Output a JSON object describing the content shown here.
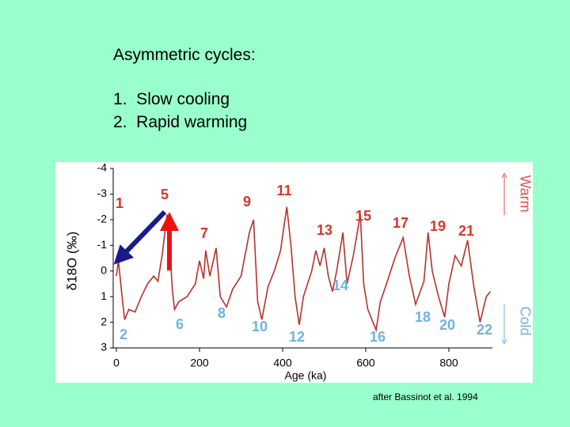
{
  "slide": {
    "heading": "Asymmetric cycles:",
    "items": [
      "1.  Slow cooling",
      "2.  Rapid warming"
    ],
    "credit": "after Bassinot et al. 1994"
  },
  "chart_data": {
    "type": "line",
    "y_label": "δ18O (‰)",
    "x_label": "Age (ka)",
    "warm_label": "Warm",
    "cold_label": "Cold",
    "xlim": [
      0,
      900
    ],
    "xticks": [
      0,
      200,
      400,
      600,
      800
    ],
    "ylim": [
      3,
      -4
    ],
    "yticks": [
      -4,
      -3,
      -2,
      -1,
      0,
      1,
      2,
      3
    ],
    "x": [
      0,
      5,
      15,
      20,
      30,
      45,
      60,
      75,
      90,
      100,
      110,
      122,
      130,
      135,
      140,
      150,
      170,
      190,
      200,
      210,
      215,
      225,
      240,
      250,
      265,
      280,
      300,
      320,
      330,
      340,
      350,
      365,
      380,
      395,
      410,
      420,
      430,
      440,
      450,
      470,
      480,
      490,
      500,
      510,
      520,
      530,
      545,
      555,
      570,
      587,
      595,
      605,
      625,
      635,
      650,
      670,
      690,
      705,
      720,
      740,
      750,
      760,
      775,
      790,
      800,
      815,
      830,
      845,
      860,
      875,
      890,
      900
    ],
    "series": [
      {
        "name": "δ18O",
        "color": "#b5332a",
        "values": [
          0.2,
          -0.4,
          1.2,
          1.9,
          1.5,
          1.6,
          1.0,
          0.5,
          0.2,
          0.4,
          -0.6,
          -2.2,
          -0.5,
          0.8,
          1.5,
          1.2,
          1.0,
          0.5,
          -0.4,
          0.3,
          -0.8,
          0.2,
          -0.9,
          1.0,
          1.4,
          0.7,
          0.2,
          -1.5,
          -2.0,
          1.2,
          1.9,
          0.6,
          0.0,
          -0.8,
          -2.5,
          -1.0,
          1.0,
          2.1,
          1.0,
          0.0,
          -0.8,
          -0.2,
          -0.9,
          0.2,
          0.8,
          0.0,
          -1.5,
          0.5,
          -0.6,
          -2.2,
          0.5,
          1.5,
          2.3,
          1.2,
          0.5,
          -0.5,
          -1.3,
          0.2,
          1.3,
          0.4,
          -1.5,
          0.0,
          1.0,
          1.8,
          0.5,
          -0.6,
          -0.2,
          -1.2,
          0.6,
          2.0,
          1.0,
          0.8
        ]
      }
    ],
    "annotations": [
      {
        "text": "1",
        "color": "#d9342b"
      },
      {
        "text": "2",
        "color": "#6fb3e0"
      },
      {
        "text": "5",
        "color": "#d9342b"
      },
      {
        "text": "6",
        "color": "#6fb3e0"
      },
      {
        "text": "7",
        "color": "#d9342b"
      },
      {
        "text": "8",
        "color": "#6fb3e0"
      },
      {
        "text": "9",
        "color": "#d9342b"
      },
      {
        "text": "10",
        "color": "#6fb3e0"
      },
      {
        "text": "11",
        "color": "#d9342b"
      },
      {
        "text": "12",
        "color": "#6fb3e0"
      },
      {
        "text": "13",
        "color": "#d9342b"
      },
      {
        "text": "14",
        "color": "#6fb3e0"
      },
      {
        "text": "15",
        "color": "#d9342b"
      },
      {
        "text": "16",
        "color": "#6fb3e0"
      },
      {
        "text": "17",
        "color": "#d9342b"
      },
      {
        "text": "18",
        "color": "#6fb3e0"
      },
      {
        "text": "19",
        "color": "#d9342b"
      },
      {
        "text": "20",
        "color": "#6fb3e0"
      },
      {
        "text": "21",
        "color": "#d9342b"
      },
      {
        "text": "22",
        "color": "#6fb3e0"
      }
    ]
  }
}
